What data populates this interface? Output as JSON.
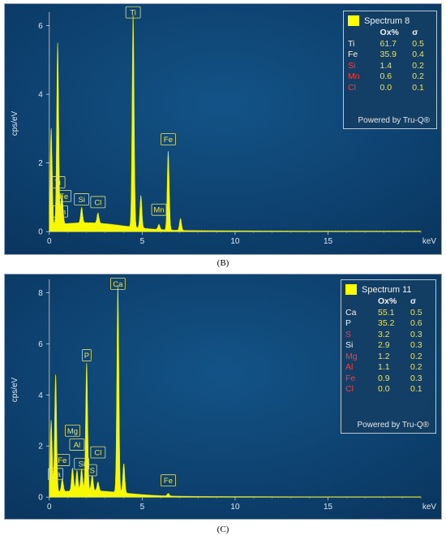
{
  "chart_data": [
    {
      "type": "line",
      "panel_label": "(B)",
      "xlabel": "keV",
      "ylabel": "cps/eV",
      "xlim": [
        0,
        20
      ],
      "ylim": [
        0,
        6.3
      ],
      "xticks": [
        0,
        5,
        10,
        15
      ],
      "yticks": [
        0,
        2,
        4,
        6
      ],
      "colors": {
        "spectrum": "#ffff00",
        "background": "#0e4570",
        "legend_swatch": "#ffff00"
      },
      "peaks": [
        {
          "label": "Ti",
          "energy": 4.51,
          "height": 6.2
        },
        {
          "label": "Ti",
          "energy": 4.93,
          "height": 0.95
        },
        {
          "label": "Fe",
          "energy": 6.4,
          "height": 2.3
        },
        {
          "label": "Fe",
          "energy": 7.06,
          "height": 0.35
        },
        {
          "label": "Ti",
          "energy": 0.45,
          "height": 5.3
        },
        {
          "label": "Fe",
          "energy": 0.7,
          "height": 0.6
        },
        {
          "label": "Mn",
          "energy": 0.64,
          "height": 0.4
        },
        {
          "label": "Si",
          "energy": 1.74,
          "height": 0.45
        },
        {
          "label": "Cl",
          "energy": 2.62,
          "height": 0.3
        },
        {
          "label": "Mn",
          "energy": 5.9,
          "height": 0.15
        },
        {
          "label": "",
          "energy": 0.1,
          "height": 3.0
        }
      ],
      "peak_labels": [
        {
          "label": "Ti",
          "x": 4.51,
          "y": 6.2
        },
        {
          "label": "Fe",
          "x": 6.4,
          "y": 2.5
        },
        {
          "label": "Ti",
          "x": 0.45,
          "y": 1.25
        },
        {
          "label": "Fe",
          "x": 0.78,
          "y": 0.85
        },
        {
          "label": "Mn",
          "x": 0.6,
          "y": 0.4
        },
        {
          "label": "Si",
          "x": 1.74,
          "y": 0.75
        },
        {
          "label": "Cl",
          "x": 2.62,
          "y": 0.67
        },
        {
          "label": "Mn",
          "x": 5.9,
          "y": 0.45
        }
      ],
      "legend": {
        "title": "Spectrum 8",
        "col_headers": [
          "Ox%",
          "σ"
        ],
        "rows": [
          {
            "element": "Ti",
            "ox": "61.7",
            "sigma": "0.5",
            "element_color": "normal"
          },
          {
            "element": "Fe",
            "ox": "35.9",
            "sigma": "0.4",
            "element_color": "normal"
          },
          {
            "element": "Si",
            "ox": "1.4",
            "sigma": "0.2",
            "element_color": "red"
          },
          {
            "element": "Mn",
            "ox": "0.6",
            "sigma": "0.2",
            "element_color": "red"
          },
          {
            "element": "Cl",
            "ox": "0.0",
            "sigma": "0.1",
            "element_color": "red"
          }
        ],
        "footer": "Powered by Tru-Q®"
      }
    },
    {
      "type": "line",
      "panel_label": "(C)",
      "xlabel": "keV",
      "ylabel": "cps/eV",
      "xlim": [
        0,
        20
      ],
      "ylim": [
        0,
        8.4
      ],
      "xticks": [
        0,
        5,
        10,
        15
      ],
      "yticks": [
        0,
        2,
        4,
        6,
        8
      ],
      "colors": {
        "spectrum": "#ffff00",
        "background": "#0e4570",
        "legend_swatch": "#ffff00"
      },
      "peaks": [
        {
          "label": "Ca",
          "energy": 3.69,
          "height": 8.1
        },
        {
          "label": "Ca",
          "energy": 4.01,
          "height": 1.15
        },
        {
          "label": "P",
          "energy": 2.01,
          "height": 5.0
        },
        {
          "label": "Ca",
          "energy": 0.34,
          "height": 4.6
        },
        {
          "label": "Mg",
          "energy": 1.25,
          "height": 0.9
        },
        {
          "label": "Al",
          "energy": 1.49,
          "height": 0.8
        },
        {
          "label": "Si",
          "energy": 1.74,
          "height": 0.85
        },
        {
          "label": "S",
          "energy": 2.31,
          "height": 0.6
        },
        {
          "label": "Cl",
          "energy": 2.62,
          "height": 0.35
        },
        {
          "label": "Fe",
          "energy": 0.7,
          "height": 0.5
        },
        {
          "label": "Fe",
          "energy": 6.4,
          "height": 0.1
        },
        {
          "label": "",
          "energy": 0.1,
          "height": 3.0
        }
      ],
      "peak_labels": [
        {
          "label": "Ca",
          "x": 3.69,
          "y": 8.1
        },
        {
          "label": "P",
          "x": 2.01,
          "y": 5.3
        },
        {
          "label": "Mg",
          "x": 1.25,
          "y": 2.35
        },
        {
          "label": "Al",
          "x": 1.49,
          "y": 1.8
        },
        {
          "label": "Cl",
          "x": 2.62,
          "y": 1.5
        },
        {
          "label": "Si",
          "x": 1.74,
          "y": 1.05
        },
        {
          "label": "S",
          "x": 2.31,
          "y": 0.8
        },
        {
          "label": "Fe",
          "x": 0.7,
          "y": 1.2
        },
        {
          "label": "Ca",
          "x": 0.34,
          "y": 0.65
        },
        {
          "label": "Fe",
          "x": 6.4,
          "y": 0.4
        }
      ],
      "legend": {
        "title": "Spectrum 11",
        "col_headers": [
          "Ox%",
          "σ"
        ],
        "rows": [
          {
            "element": "Ca",
            "ox": "55.1",
            "sigma": "0.5",
            "element_color": "normal"
          },
          {
            "element": "P",
            "ox": "35.2",
            "sigma": "0.6",
            "element_color": "normal"
          },
          {
            "element": "S",
            "ox": "3.2",
            "sigma": "0.3",
            "element_color": "red"
          },
          {
            "element": "Si",
            "ox": "2.9",
            "sigma": "0.3",
            "element_color": "normal"
          },
          {
            "element": "Mg",
            "ox": "1.2",
            "sigma": "0.2",
            "element_color": "red"
          },
          {
            "element": "Al",
            "ox": "1.1",
            "sigma": "0.2",
            "element_color": "red"
          },
          {
            "element": "Fe",
            "ox": "0.9",
            "sigma": "0.3",
            "element_color": "red"
          },
          {
            "element": "Cl",
            "ox": "0.0",
            "sigma": "0.1",
            "element_color": "red"
          }
        ],
        "footer": "Powered by Tru-Q®"
      }
    }
  ]
}
